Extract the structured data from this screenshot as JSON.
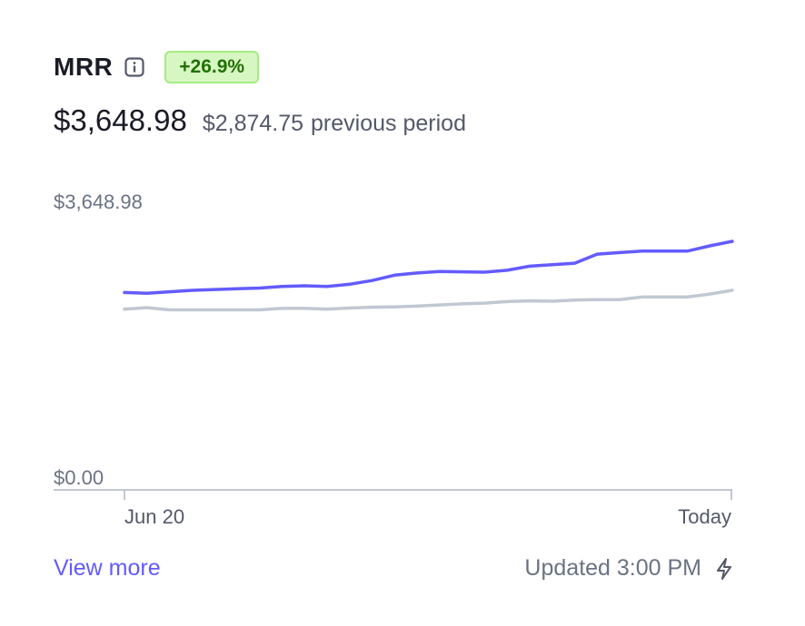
{
  "header": {
    "title": "MRR",
    "badge": "+26.9%"
  },
  "summary": {
    "current_value": "$3,648.98",
    "previous_value": "$2,874.75",
    "previous_label": "previous period"
  },
  "chart_data": {
    "type": "line",
    "y_top_label": "$3,648.98",
    "y_bottom_label": "$0.00",
    "x_start_label": "Jun 20",
    "x_end_label": "Today",
    "ylim": [
      0,
      3648.98
    ],
    "grid": false,
    "series": [
      {
        "color": "#635bff",
        "values": [
          2620,
          2610,
          2630,
          2650,
          2660,
          2670,
          2680,
          2700,
          2710,
          2700,
          2730,
          2780,
          2850,
          2880,
          2900,
          2895,
          2890,
          2915,
          2970,
          2990,
          3010,
          3130,
          3150,
          3170,
          3170,
          3170,
          3240,
          3300
        ]
      },
      {
        "color": "#c0c8d2",
        "values": [
          2400,
          2420,
          2390,
          2390,
          2390,
          2390,
          2390,
          2410,
          2410,
          2400,
          2415,
          2425,
          2430,
          2440,
          2455,
          2470,
          2480,
          2500,
          2510,
          2505,
          2520,
          2525,
          2525,
          2560,
          2560,
          2560,
          2600,
          2650
        ]
      }
    ]
  },
  "footer": {
    "link_label": "View more",
    "updated_label": "Updated 3:00 PM"
  },
  "colors": {
    "accent": "#635bff",
    "badge_bg": "#d7f7c2",
    "badge_text": "#217005",
    "previous_series": "#c0c8d2"
  },
  "icons": {
    "info": "info-icon",
    "refresh": "bolt-icon"
  }
}
